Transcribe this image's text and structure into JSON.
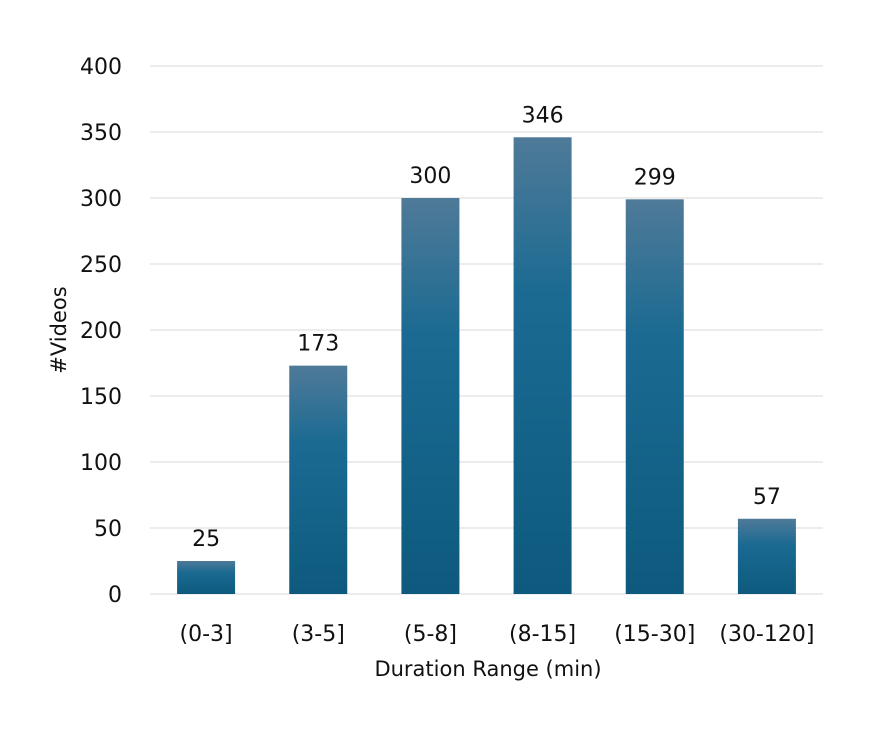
{
  "chart_data": {
    "type": "bar",
    "title": "",
    "xlabel": "Duration Range (min)",
    "ylabel": "#Videos",
    "categories": [
      "(0-3]",
      "(3-5]",
      "(5-8]",
      "(8-15]",
      "(15-30]",
      "(30-120]"
    ],
    "values": [
      25,
      173,
      300,
      346,
      299,
      57
    ],
    "data_labels": [
      "25",
      "173",
      "300",
      "346",
      "299",
      "57"
    ],
    "ylim": [
      0,
      400
    ],
    "yticks": [
      0,
      50,
      100,
      150,
      200,
      250,
      300,
      350,
      400
    ],
    "ytick_labels": [
      "0",
      "50",
      "100",
      "150",
      "200",
      "250",
      "300",
      "350",
      "400"
    ],
    "grid": true,
    "legend": "none",
    "colors": {
      "bar_top": "#4f7a98",
      "bar_mid": "#1a6a92",
      "bar_bottom": "#0e5a7e",
      "gridline": "#d9d9d9",
      "text": "#111111"
    }
  }
}
